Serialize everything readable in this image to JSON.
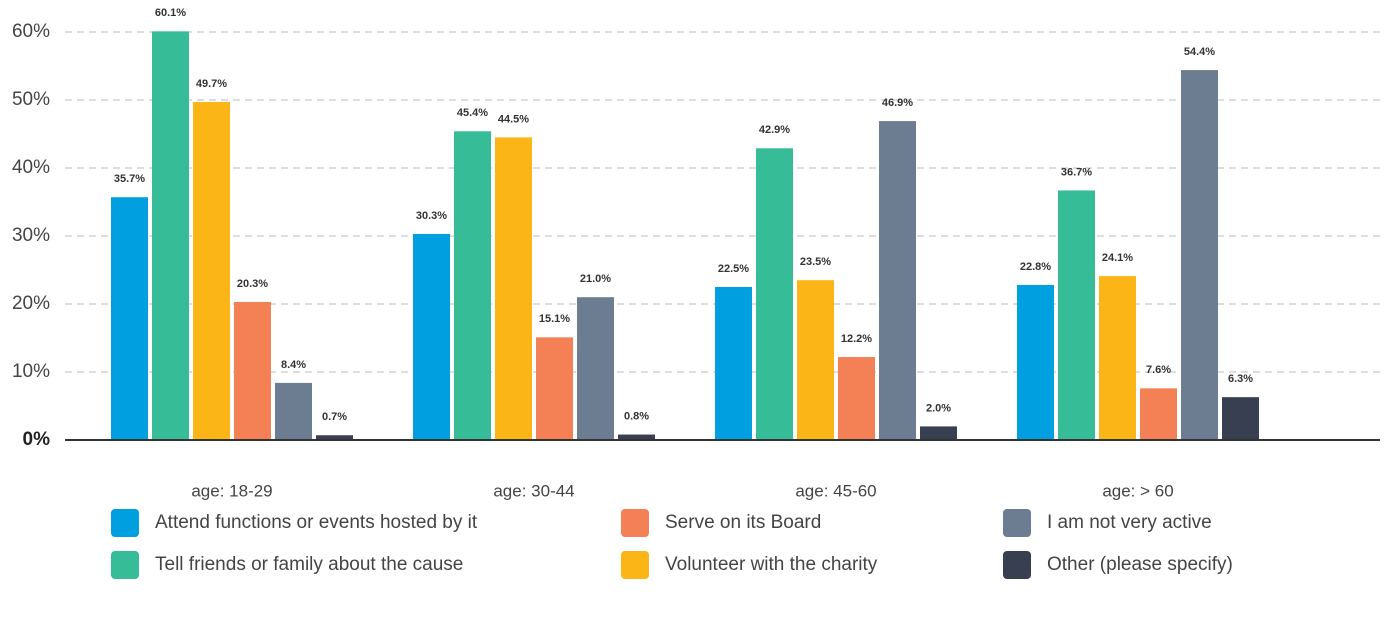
{
  "chart_data": {
    "type": "bar",
    "categories": [
      "age: 18-29",
      "age: 30-44",
      "age: 45-60",
      "age: > 60"
    ],
    "series": [
      {
        "name": "Attend functions or events hosted by it",
        "color": "#009fdf",
        "values": [
          35.7,
          30.3,
          22.5,
          22.8
        ],
        "value_labels": [
          "35.7%",
          "30.3%",
          "22.5%",
          "22.8%"
        ]
      },
      {
        "name": "Tell friends or family about the cause",
        "color": "#36bd98",
        "values": [
          60.1,
          45.4,
          42.9,
          36.7
        ],
        "value_labels": [
          "60.1%",
          "45.4%",
          "42.9%",
          "36.7%"
        ]
      },
      {
        "name": "Volunteer with the charity",
        "color": "#fbb516",
        "values": [
          49.7,
          44.5,
          23.5,
          24.1
        ],
        "value_labels": [
          "49.7%",
          "44.5%",
          "23.5%",
          "24.1%"
        ]
      },
      {
        "name": "Serve on its Board",
        "color": "#f48055",
        "values": [
          20.3,
          15.1,
          12.2,
          7.6
        ],
        "value_labels": [
          "20.3%",
          "15.1%",
          "12.2%",
          "7.6%"
        ]
      },
      {
        "name": "I am not very active",
        "color": "#6c7d91",
        "values": [
          8.4,
          21.0,
          46.9,
          54.4
        ],
        "value_labels": [
          "8.4%",
          "21.0%",
          "46.9%",
          "54.4%"
        ]
      },
      {
        "name": "Other (please specify)",
        "color": "#383f51",
        "values": [
          0.7,
          0.8,
          2.0,
          6.3
        ],
        "value_labels": [
          "0.7%",
          "0.8%",
          "2.0%",
          "6.3%"
        ]
      }
    ],
    "ylim": [
      0,
      60
    ],
    "yticks": [
      {
        "value": 0,
        "label": "0%"
      },
      {
        "value": 10,
        "label": "10%"
      },
      {
        "value": 20,
        "label": "20%"
      },
      {
        "value": 30,
        "label": "30%"
      },
      {
        "value": 40,
        "label": "40%"
      },
      {
        "value": 50,
        "label": "50%"
      },
      {
        "value": 60,
        "label": "60%"
      }
    ],
    "grid": true
  }
}
